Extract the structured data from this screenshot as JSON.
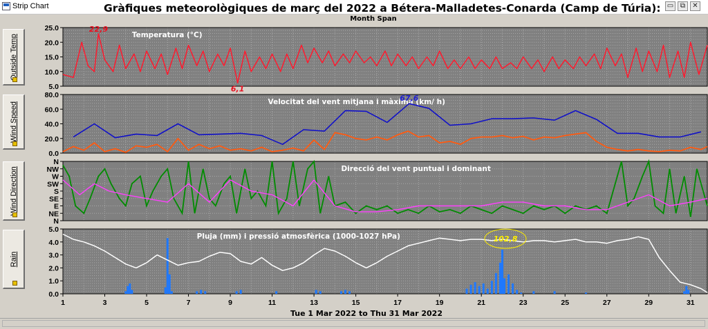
{
  "window": {
    "app_title": "Strip Chart",
    "minimize_glyph": "▭",
    "restore_glyph": "⧉",
    "close_glyph": "✕"
  },
  "title": "Gràfiques meteorològiques de març del 2022 a Bétera-Malladetes-Conarda (Camp de Túria):",
  "subtitle": "Month Span",
  "date_range": "Tue 1 Mar 2022  to  Thu 31 Mar 2022",
  "colors": {
    "plot_bg": "#808080",
    "grid": "#a8a8a8",
    "temperature": "#ff1a2e",
    "wind_avg": "#ff5a10",
    "wind_gust": "#1010c8",
    "direction": "#008c00",
    "dominant_direction": "#ff40ff",
    "rain": "#1e78ff",
    "pressure": "#ffffff",
    "pressure_annotation": "#ffee00"
  },
  "chart_data": [
    {
      "type": "line",
      "panel_label": "Outside Temp",
      "title": "Temperatura (°C)",
      "xlim": [
        1,
        31.8
      ],
      "ylim": [
        5,
        25
      ],
      "y_ticks": [
        "5.0",
        "10.0",
        "15.0",
        "20.0",
        "25.0"
      ],
      "x_ticks": [
        "1",
        "3",
        "5",
        "7",
        "9",
        "11",
        "13",
        "15",
        "17",
        "19",
        "21",
        "23",
        "25",
        "27",
        "29",
        "31"
      ],
      "annotations": [
        {
          "text": "22,9",
          "x": 2.7,
          "y": 22.9
        },
        {
          "text": "6,1",
          "x": 9.35,
          "y": 6.1
        }
      ],
      "series": [
        {
          "x": [
            1.0,
            1.5,
            1.9,
            2.2,
            2.5,
            2.7,
            3.0,
            3.4,
            3.7,
            4.0,
            4.4,
            4.7,
            5.0,
            5.4,
            5.7,
            6.0,
            6.4,
            6.7,
            7.0,
            7.4,
            7.7,
            8.0,
            8.4,
            8.7,
            9.0,
            9.35,
            9.7,
            10.0,
            10.4,
            10.7,
            11.0,
            11.4,
            11.7,
            12.0,
            12.4,
            12.7,
            13.0,
            13.4,
            13.7,
            14.0,
            14.4,
            14.7,
            15.0,
            15.4,
            15.7,
            16.0,
            16.4,
            16.7,
            17.0,
            17.4,
            17.7,
            18.0,
            18.4,
            18.7,
            19.0,
            19.4,
            19.7,
            20.0,
            20.4,
            20.7,
            21.0,
            21.4,
            21.7,
            22.0,
            22.4,
            22.7,
            23.0,
            23.4,
            23.7,
            24.0,
            24.4,
            24.7,
            25.0,
            25.4,
            25.7,
            26.0,
            26.4,
            26.7,
            27.0,
            27.4,
            27.7,
            28.0,
            28.4,
            28.7,
            29.0,
            29.4,
            29.7,
            30.0,
            30.4,
            30.7,
            31.0,
            31.4,
            31.8
          ],
          "y": [
            9,
            8,
            20,
            12,
            10,
            22.9,
            14,
            10,
            19,
            11,
            16,
            10,
            17,
            11,
            16,
            9,
            18,
            11,
            19,
            12,
            17,
            10,
            16,
            12,
            18,
            6.1,
            17,
            10,
            15,
            11,
            16,
            10,
            16,
            11,
            19,
            13,
            18,
            13,
            17,
            12,
            16,
            13,
            17,
            13,
            15,
            12,
            17,
            12,
            16,
            12,
            15,
            11,
            15,
            12,
            17,
            11,
            14,
            11,
            15,
            11,
            14,
            11,
            15,
            11,
            13,
            11,
            15,
            11,
            14,
            10,
            15,
            11,
            14,
            11,
            15,
            12,
            16,
            11,
            18,
            12,
            16,
            8,
            18,
            10,
            17,
            10,
            19,
            8,
            17,
            8,
            20,
            9,
            19
          ]
        }
      ]
    },
    {
      "type": "line",
      "panel_label": "Wind Speed",
      "title": "Velocitat del vent mitjana i màxima (km/ h)",
      "xlim": [
        1,
        31.8
      ],
      "ylim": [
        0,
        80
      ],
      "y_ticks": [
        "0.0",
        "20.0",
        "40.0",
        "60.0",
        "80.0"
      ],
      "annotations": [
        {
          "text": "67,6",
          "x": 17.55,
          "y": 67.6
        }
      ],
      "series": [
        {
          "name": "màxima",
          "x": [
            1.5,
            2.5,
            3.5,
            4.5,
            5.5,
            6.5,
            7.5,
            8.5,
            9.5,
            10.5,
            11.5,
            12.5,
            13.5,
            14.5,
            15.5,
            16.5,
            17.55,
            18.5,
            19.5,
            20.5,
            21.5,
            22.5,
            23.5,
            24.5,
            25.5,
            26.5,
            27.5,
            28.5,
            29.5,
            30.5,
            31.5
          ],
          "y": [
            22,
            40,
            21,
            26,
            24,
            40,
            25,
            26,
            27,
            24,
            12,
            32,
            30,
            58,
            57,
            42,
            67.6,
            61,
            38,
            40,
            47,
            47,
            48,
            45,
            58,
            46,
            27,
            27,
            22,
            22,
            29
          ]
        },
        {
          "name": "mitjana",
          "x": [
            1.0,
            1.5,
            2.0,
            2.5,
            3.0,
            3.5,
            4.0,
            4.5,
            5.0,
            5.5,
            6.0,
            6.5,
            7.0,
            7.5,
            8.0,
            8.5,
            9.0,
            9.5,
            10.0,
            10.5,
            11.0,
            11.5,
            12.0,
            12.5,
            13.0,
            13.5,
            14.0,
            14.5,
            15.0,
            15.5,
            16.0,
            16.5,
            17.0,
            17.5,
            18.0,
            18.5,
            19.0,
            19.5,
            20.0,
            20.5,
            21.0,
            21.5,
            22.0,
            22.5,
            23.0,
            23.5,
            24.0,
            24.5,
            25.0,
            25.5,
            26.0,
            26.5,
            27.0,
            27.5,
            28.0,
            28.5,
            29.0,
            29.5,
            30.0,
            30.5,
            31.0,
            31.5,
            31.8
          ],
          "y": [
            2,
            9,
            4,
            14,
            2,
            6,
            1,
            10,
            8,
            12,
            2,
            20,
            4,
            12,
            6,
            10,
            4,
            6,
            3,
            8,
            2,
            4,
            7,
            3,
            18,
            5,
            28,
            25,
            20,
            18,
            22,
            18,
            25,
            30,
            22,
            24,
            14,
            16,
            12,
            20,
            22,
            22,
            24,
            21,
            23,
            18,
            22,
            21,
            24,
            26,
            28,
            16,
            8,
            5,
            3,
            5,
            3,
            2,
            4,
            3,
            8,
            5,
            9
          ]
        }
      ]
    },
    {
      "type": "line",
      "panel_label": "Wind Direction",
      "title": "Direcció del vent puntual i dominant",
      "xlim": [
        1,
        31.8
      ],
      "y_categories": [
        "N",
        "NE",
        "E",
        "SE",
        "S",
        "SW",
        "W",
        "NW",
        "N"
      ],
      "series": [
        {
          "name": "puntual",
          "x": [
            1.0,
            1.3,
            1.6,
            2.0,
            2.3,
            2.7,
            3.0,
            3.3,
            3.7,
            4.0,
            4.3,
            4.7,
            5.0,
            5.3,
            5.7,
            6.0,
            6.3,
            6.7,
            7.0,
            7.3,
            7.7,
            8.0,
            8.3,
            8.7,
            9.0,
            9.3,
            9.7,
            10.0,
            10.3,
            10.7,
            11.0,
            11.3,
            11.7,
            12.0,
            12.3,
            12.7,
            13.0,
            13.3,
            13.7,
            14.0,
            14.5,
            15.0,
            15.5,
            16.0,
            16.5,
            17.0,
            17.5,
            18.0,
            18.5,
            19.0,
            19.5,
            20.0,
            20.5,
            21.0,
            21.5,
            22.0,
            22.5,
            23.0,
            23.5,
            24.0,
            24.5,
            25.0,
            25.5,
            26.0,
            26.5,
            27.0,
            27.3,
            27.7,
            28.0,
            28.3,
            28.7,
            29.0,
            29.3,
            29.7,
            30.0,
            30.3,
            30.7,
            31.0,
            31.3,
            31.8
          ],
          "y": [
            7.5,
            6,
            2,
            1,
            3,
            6,
            7,
            5,
            3,
            2,
            5,
            6,
            2,
            4,
            6,
            7,
            3,
            1,
            8,
            1,
            7,
            3,
            2,
            5,
            6,
            1,
            7,
            3,
            4,
            2,
            8,
            1,
            3,
            8,
            2,
            7,
            8,
            1,
            6,
            2,
            2.5,
            1,
            2,
            1.5,
            2,
            1,
            1.5,
            1,
            2,
            1.2,
            1.5,
            1,
            2,
            1.5,
            1,
            2,
            1.5,
            1,
            2,
            1.5,
            2,
            1,
            2,
            1.5,
            2,
            1,
            4,
            8,
            2,
            3,
            6,
            8,
            2,
            1,
            7,
            1,
            6,
            0.5,
            7,
            2
          ]
        },
        {
          "name": "dominant",
          "x": [
            1.0,
            1.8,
            2.5,
            3.2,
            4.0,
            5.0,
            6.0,
            7.0,
            8.0,
            9.0,
            10.0,
            11.0,
            12.0,
            13.0,
            14.0,
            15.0,
            16.0,
            17.0,
            18.0,
            19.0,
            20.0,
            21.0,
            22.0,
            23.0,
            24.0,
            25.0,
            26.0,
            27.0,
            28.0,
            29.0,
            30.0,
            31.0,
            31.8
          ],
          "y": [
            5.5,
            3.5,
            5,
            4,
            3.5,
            3,
            2.5,
            5,
            2.5,
            5.5,
            4,
            3.5,
            2,
            5.5,
            2,
            1.2,
            1.2,
            1.5,
            2,
            2,
            2,
            2,
            2.5,
            2.5,
            2,
            2,
            1.5,
            1.5,
            2.5,
            3.5,
            2,
            2.5,
            3
          ]
        }
      ]
    },
    {
      "type": "line",
      "panel_label": "Rain",
      "title": "Pluja (mm) i pressió atmosfèrica (1000-1027 hPa)",
      "xlim": [
        1,
        31.8
      ],
      "ylim": [
        0,
        5
      ],
      "y_ticks": [
        "0.0",
        "1.0",
        "2.0",
        "3.0",
        "4.0",
        "5.0"
      ],
      "annotations": [
        {
          "text": "102,8",
          "x": 22.15,
          "y": 4.25
        }
      ],
      "series": [
        {
          "name": "pressió",
          "x": [
            1.0,
            1.5,
            2.0,
            2.5,
            3.0,
            3.5,
            4.0,
            4.5,
            5.0,
            5.5,
            6.0,
            6.5,
            7.0,
            7.5,
            8.0,
            8.5,
            9.0,
            9.5,
            10.0,
            10.5,
            11.0,
            11.5,
            12.0,
            12.5,
            13.0,
            13.5,
            14.0,
            14.5,
            15.0,
            15.5,
            16.0,
            16.5,
            17.0,
            17.5,
            18.0,
            18.5,
            19.0,
            19.5,
            20.0,
            20.5,
            21.0,
            21.5,
            22.0,
            22.5,
            23.0,
            23.5,
            24.0,
            24.5,
            25.0,
            25.5,
            26.0,
            26.5,
            27.0,
            27.5,
            28.0,
            28.5,
            29.0,
            29.5,
            30.0,
            30.5,
            31.0,
            31.5,
            31.8
          ],
          "y": [
            4.6,
            4.2,
            4.0,
            3.7,
            3.3,
            2.8,
            2.3,
            2.0,
            2.4,
            3.0,
            2.6,
            2.2,
            2.4,
            2.5,
            2.9,
            3.2,
            3.1,
            2.5,
            2.3,
            2.8,
            2.2,
            1.8,
            2.0,
            2.4,
            3.0,
            3.5,
            3.3,
            2.9,
            2.4,
            2.0,
            2.4,
            2.9,
            3.3,
            3.7,
            3.9,
            4.1,
            4.3,
            4.2,
            4.1,
            4.2,
            4.2,
            4.1,
            4.2,
            4.1,
            4.0,
            4.1,
            4.1,
            4.0,
            4.1,
            4.2,
            4.0,
            4.0,
            3.9,
            4.1,
            4.2,
            4.4,
            4.2,
            2.8,
            1.8,
            0.9,
            0.7,
            0.4,
            0.1
          ]
        },
        {
          "name": "pluja",
          "x": [
            4.0,
            4.1,
            4.2,
            4.3,
            5.9,
            6.0,
            6.1,
            6.2,
            7.4,
            7.6,
            7.8,
            9.3,
            9.5,
            11.2,
            13.1,
            13.3,
            14.3,
            14.5,
            14.7,
            20.3,
            20.5,
            20.7,
            20.9,
            21.1,
            21.3,
            21.5,
            21.7,
            21.9,
            22.0,
            22.1,
            22.3,
            22.5,
            22.7,
            22.9,
            23.5,
            24.5,
            26.0,
            30.7,
            30.8,
            30.9
          ],
          "y": [
            0.2,
            0.6,
            0.8,
            0.3,
            0.5,
            4.3,
            1.5,
            0.2,
            0.2,
            0.3,
            0.2,
            0.2,
            0.3,
            0.2,
            0.3,
            0.2,
            0.2,
            0.3,
            0.2,
            0.4,
            0.7,
            0.9,
            0.6,
            0.8,
            0.4,
            1.0,
            1.6,
            2.4,
            3.4,
            1.2,
            1.5,
            0.8,
            0.3,
            0.1,
            0.2,
            0.2,
            0.1,
            0.2,
            0.6,
            0.3
          ]
        }
      ]
    }
  ]
}
